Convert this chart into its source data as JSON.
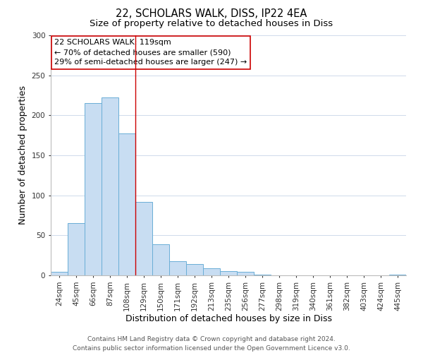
{
  "title_line1": "22, SCHOLARS WALK, DISS, IP22 4EA",
  "title_line2": "Size of property relative to detached houses in Diss",
  "xlabel": "Distribution of detached houses by size in Diss",
  "ylabel": "Number of detached properties",
  "bar_labels": [
    "24sqm",
    "45sqm",
    "66sqm",
    "87sqm",
    "108sqm",
    "129sqm",
    "150sqm",
    "171sqm",
    "192sqm",
    "213sqm",
    "235sqm",
    "256sqm",
    "277sqm",
    "298sqm",
    "319sqm",
    "340sqm",
    "361sqm",
    "382sqm",
    "403sqm",
    "424sqm",
    "445sqm"
  ],
  "bar_values": [
    4,
    65,
    215,
    222,
    177,
    92,
    39,
    18,
    14,
    9,
    5,
    4,
    1,
    0,
    0,
    0,
    0,
    0,
    0,
    0,
    1
  ],
  "bar_color": "#c8ddf2",
  "bar_edge_color": "#6aaed6",
  "vline_color": "#cc0000",
  "annotation_box_text_line1": "22 SCHOLARS WALK: 119sqm",
  "annotation_box_text_line2": "← 70% of detached houses are smaller (590)",
  "annotation_box_text_line3": "29% of semi-detached houses are larger (247) →",
  "box_edge_color": "#cc0000",
  "ylim": [
    0,
    300
  ],
  "yticks": [
    0,
    50,
    100,
    150,
    200,
    250,
    300
  ],
  "background_color": "#ffffff",
  "grid_color": "#c8d4e8",
  "footer_text": "Contains HM Land Registry data © Crown copyright and database right 2024.\nContains public sector information licensed under the Open Government Licence v3.0.",
  "title_fontsize": 10.5,
  "subtitle_fontsize": 9.5,
  "axis_label_fontsize": 9,
  "tick_fontsize": 7.5,
  "annotation_fontsize": 8,
  "footer_fontsize": 6.5
}
